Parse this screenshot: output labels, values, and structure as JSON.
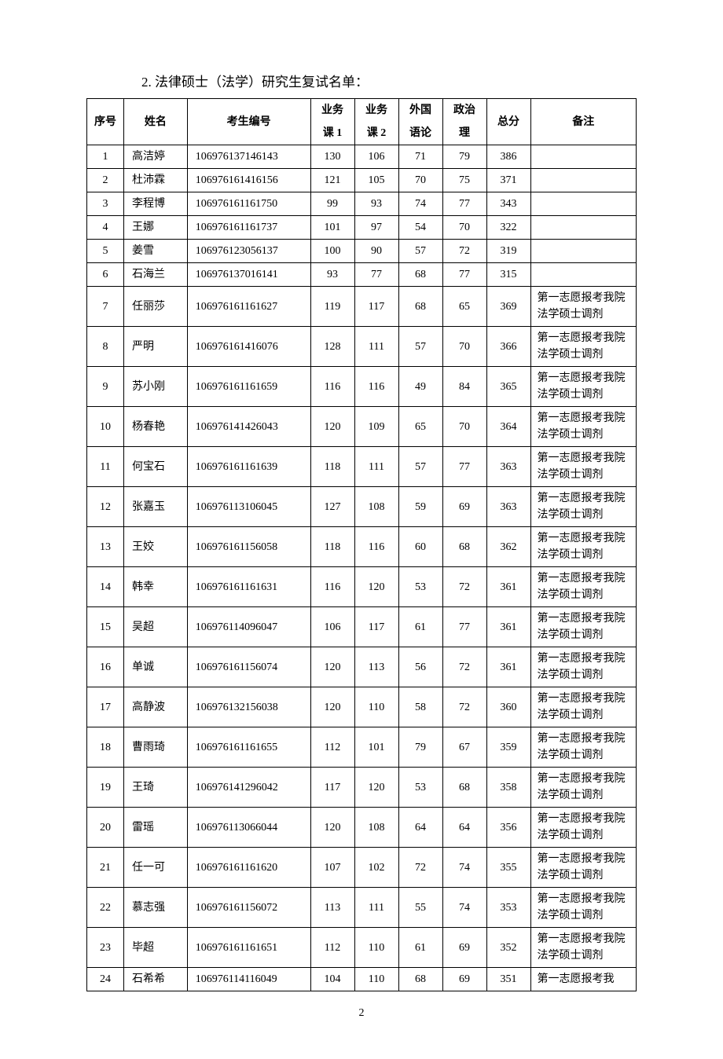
{
  "title": "2. 法律硕士（法学）研究生复试名单：",
  "page_number": "2",
  "columns": {
    "idx": "序号",
    "name": "姓名",
    "id": "考生编号",
    "s1a": "业务",
    "s1b": "课 1",
    "s2a": "业务",
    "s2b": "课 2",
    "s3a": "外国",
    "s3b": "语论",
    "s4a": "政治",
    "s4b": "理",
    "total": "总分",
    "note": "备注"
  },
  "rows": [
    {
      "idx": "1",
      "name": "高洁婷",
      "id": "106976137146143",
      "s1": "130",
      "s2": "106",
      "s3": "71",
      "s4": "79",
      "total": "386",
      "note": ""
    },
    {
      "idx": "2",
      "name": "杜沛霖",
      "id": "106976161416156",
      "s1": "121",
      "s2": "105",
      "s3": "70",
      "s4": "75",
      "total": "371",
      "note": ""
    },
    {
      "idx": "3",
      "name": "李程博",
      "id": "106976161161750",
      "s1": "99",
      "s2": "93",
      "s3": "74",
      "s4": "77",
      "total": "343",
      "note": ""
    },
    {
      "idx": "4",
      "name": "王娜",
      "id": "106976161161737",
      "s1": "101",
      "s2": "97",
      "s3": "54",
      "s4": "70",
      "total": "322",
      "note": ""
    },
    {
      "idx": "5",
      "name": "姜雪",
      "id": "106976123056137",
      "s1": "100",
      "s2": "90",
      "s3": "57",
      "s4": "72",
      "total": "319",
      "note": ""
    },
    {
      "idx": "6",
      "name": "石海兰",
      "id": "106976137016141",
      "s1": "93",
      "s2": "77",
      "s3": "68",
      "s4": "77",
      "total": "315",
      "note": ""
    },
    {
      "idx": "7",
      "name": "任丽莎",
      "id": "106976161161627",
      "s1": "119",
      "s2": "117",
      "s3": "68",
      "s4": "65",
      "total": "369",
      "note": "第一志愿报考我院法学硕士调剂"
    },
    {
      "idx": "8",
      "name": "严明",
      "id": "106976161416076",
      "s1": "128",
      "s2": "111",
      "s3": "57",
      "s4": "70",
      "total": "366",
      "note": "第一志愿报考我院法学硕士调剂"
    },
    {
      "idx": "9",
      "name": "苏小刚",
      "id": "106976161161659",
      "s1": "116",
      "s2": "116",
      "s3": "49",
      "s4": "84",
      "total": "365",
      "note": "第一志愿报考我院法学硕士调剂"
    },
    {
      "idx": "10",
      "name": "杨春艳",
      "id": "106976141426043",
      "s1": "120",
      "s2": "109",
      "s3": "65",
      "s4": "70",
      "total": "364",
      "note": "第一志愿报考我院法学硕士调剂"
    },
    {
      "idx": "11",
      "name": "何宝石",
      "id": "106976161161639",
      "s1": "118",
      "s2": "111",
      "s3": "57",
      "s4": "77",
      "total": "363",
      "note": "第一志愿报考我院法学硕士调剂"
    },
    {
      "idx": "12",
      "name": "张嘉玉",
      "id": "106976113106045",
      "s1": "127",
      "s2": "108",
      "s3": "59",
      "s4": "69",
      "total": "363",
      "note": "第一志愿报考我院法学硕士调剂"
    },
    {
      "idx": "13",
      "name": "王姣",
      "id": "106976161156058",
      "s1": "118",
      "s2": "116",
      "s3": "60",
      "s4": "68",
      "total": "362",
      "note": "第一志愿报考我院法学硕士调剂"
    },
    {
      "idx": "14",
      "name": "韩幸",
      "id": "106976161161631",
      "s1": "116",
      "s2": "120",
      "s3": "53",
      "s4": "72",
      "total": "361",
      "note": "第一志愿报考我院法学硕士调剂"
    },
    {
      "idx": "15",
      "name": "吴超",
      "id": "106976114096047",
      "s1": "106",
      "s2": "117",
      "s3": "61",
      "s4": "77",
      "total": "361",
      "note": "第一志愿报考我院法学硕士调剂"
    },
    {
      "idx": "16",
      "name": "单诚",
      "id": "106976161156074",
      "s1": "120",
      "s2": "113",
      "s3": "56",
      "s4": "72",
      "total": "361",
      "note": "第一志愿报考我院法学硕士调剂"
    },
    {
      "idx": "17",
      "name": "高静波",
      "id": "106976132156038",
      "s1": "120",
      "s2": "110",
      "s3": "58",
      "s4": "72",
      "total": "360",
      "note": "第一志愿报考我院法学硕士调剂"
    },
    {
      "idx": "18",
      "name": "曹雨琦",
      "id": "106976161161655",
      "s1": "112",
      "s2": "101",
      "s3": "79",
      "s4": "67",
      "total": "359",
      "note": "第一志愿报考我院法学硕士调剂"
    },
    {
      "idx": "19",
      "name": "王琦",
      "id": "106976141296042",
      "s1": "117",
      "s2": "120",
      "s3": "53",
      "s4": "68",
      "total": "358",
      "note": "第一志愿报考我院法学硕士调剂"
    },
    {
      "idx": "20",
      "name": "雷瑶",
      "id": "106976113066044",
      "s1": "120",
      "s2": "108",
      "s3": "64",
      "s4": "64",
      "total": "356",
      "note": "第一志愿报考我院法学硕士调剂"
    },
    {
      "idx": "21",
      "name": "任一可",
      "id": "106976161161620",
      "s1": "107",
      "s2": "102",
      "s3": "72",
      "s4": "74",
      "total": "355",
      "note": "第一志愿报考我院法学硕士调剂"
    },
    {
      "idx": "22",
      "name": "慕志强",
      "id": "106976161156072",
      "s1": "113",
      "s2": "111",
      "s3": "55",
      "s4": "74",
      "total": "353",
      "note": "第一志愿报考我院法学硕士调剂"
    },
    {
      "idx": "23",
      "name": "毕超",
      "id": "106976161161651",
      "s1": "112",
      "s2": "110",
      "s3": "61",
      "s4": "69",
      "total": "352",
      "note": "第一志愿报考我院法学硕士调剂"
    },
    {
      "idx": "24",
      "name": "石希希",
      "id": "106976114116049",
      "s1": "104",
      "s2": "110",
      "s3": "68",
      "s4": "69",
      "total": "351",
      "note": "第一志愿报考我"
    }
  ]
}
